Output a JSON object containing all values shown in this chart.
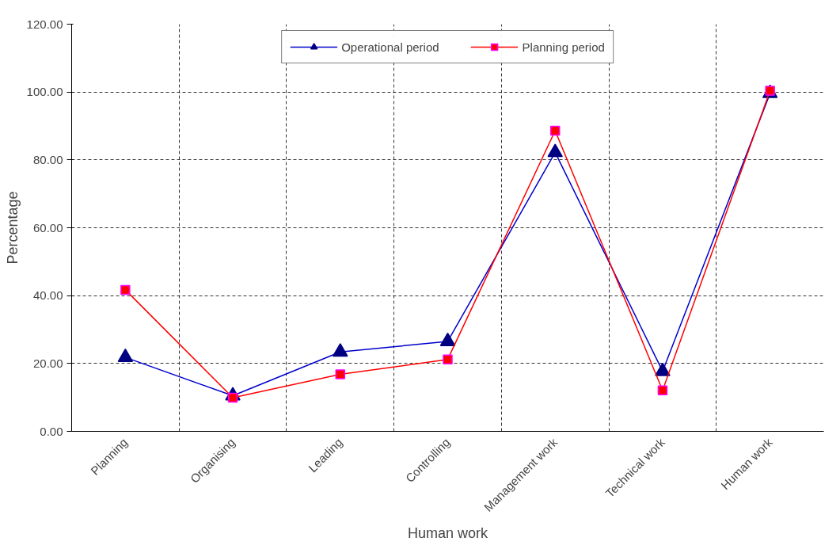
{
  "chart_data": {
    "type": "line",
    "xlabel": "Human work",
    "ylabel": "Percentage",
    "categories": [
      "Planning",
      "Organising",
      "Leading",
      "Controlling",
      "Management work",
      "Technical work",
      "Human work"
    ],
    "series": [
      {
        "name": "Operational period",
        "color": "#0000cc",
        "marker": "triangle",
        "values": [
          21.8,
          10.5,
          23.4,
          26.5,
          82.2,
          17.7,
          99.6
        ]
      },
      {
        "name": "Planning period",
        "color": "#ff0000",
        "marker": "square",
        "values": [
          41.7,
          9.9,
          16.8,
          21.2,
          88.6,
          12.1,
          100.4
        ]
      }
    ],
    "ylim": [
      0,
      120
    ],
    "yticks": [
      {
        "value": 0,
        "label": "0.00"
      },
      {
        "value": 20,
        "label": "20.00"
      },
      {
        "value": 40,
        "label": "40.00"
      },
      {
        "value": 60,
        "label": "60.00"
      },
      {
        "value": 80,
        "label": "80.00"
      },
      {
        "value": 100,
        "label": "100.00"
      },
      {
        "value": 120,
        "label": "120.00"
      }
    ],
    "grid": true,
    "legend": "top",
    "line_style": "solid"
  }
}
